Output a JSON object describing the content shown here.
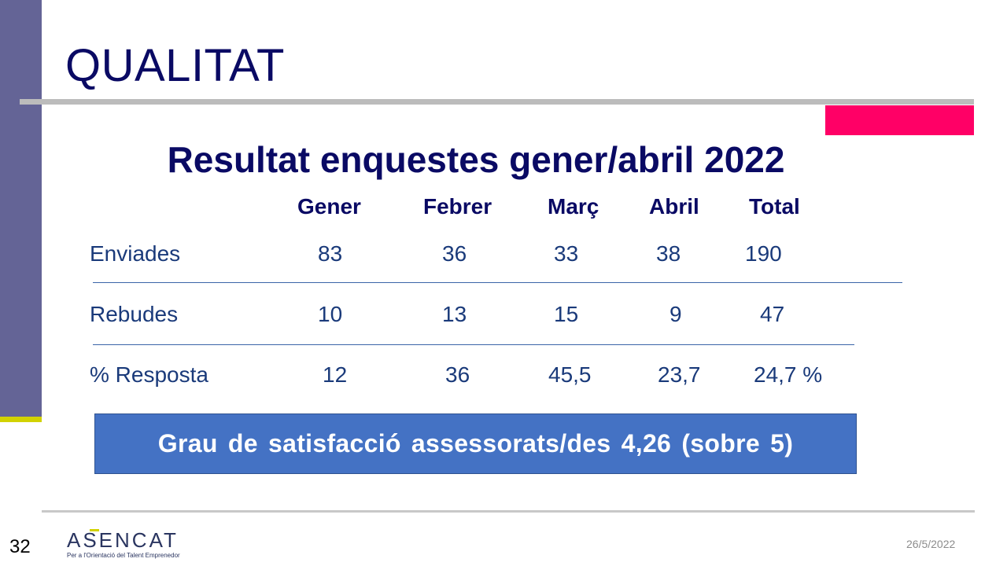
{
  "slide": {
    "title": "QUALITAT",
    "subtitle": "Resultat enquestes gener/abril 2022",
    "page_number": "32",
    "date": "26/5/2022"
  },
  "table": {
    "columns": [
      "Gener",
      "Febrer",
      "Març",
      "Abril",
      "Total"
    ],
    "rows": [
      {
        "label": "Enviades",
        "values": [
          "83",
          "36",
          "33",
          "38",
          "190"
        ]
      },
      {
        "label": "Rebudes",
        "values": [
          "10",
          "13",
          "15",
          "9",
          "47"
        ]
      },
      {
        "label": "% Resposta",
        "values": [
          "12",
          "36",
          "45,5",
          "23,7",
          "24,7 %"
        ]
      }
    ]
  },
  "highlight": {
    "text": "Grau de satisfacció assessorats/des 4,26 (sobre 5)"
  },
  "logo": {
    "name": "ASENCAT",
    "tagline": "Per a l'Orientació del Talent Emprenedor"
  },
  "colors": {
    "title": "#0a0a64",
    "side_bar": "#646496",
    "accent_yellow": "#d2d200",
    "accent_pink": "#ff0066",
    "box": "#4472c4"
  }
}
